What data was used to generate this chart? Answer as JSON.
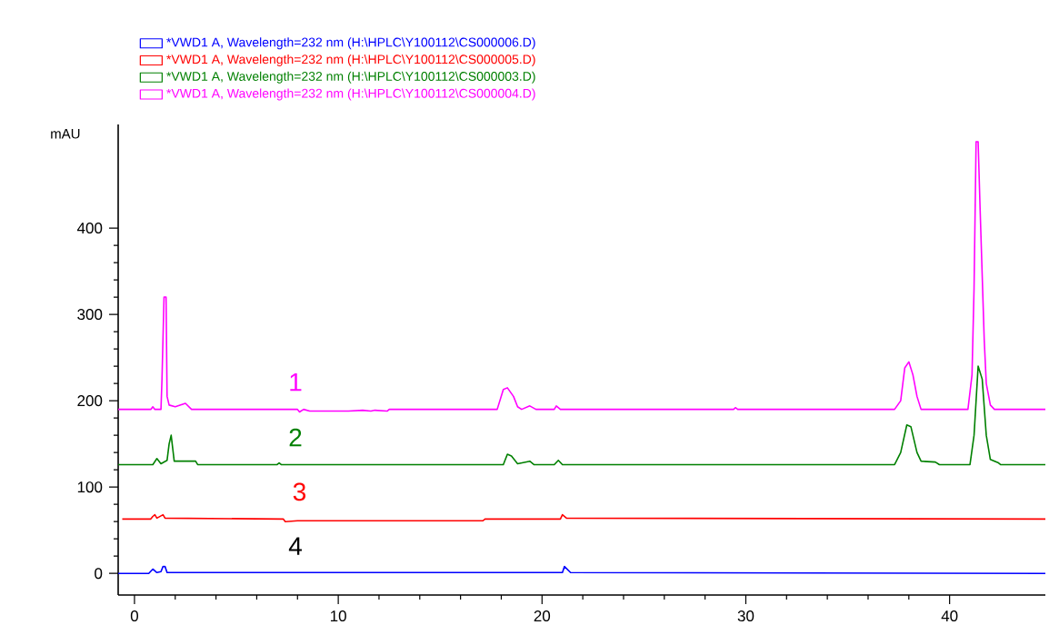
{
  "chart_data": {
    "type": "line",
    "ylabel": "mAU",
    "xlim": [
      -0.8,
      44.7
    ],
    "ylim": [
      -25,
      520
    ],
    "xticks": [
      0,
      10,
      20,
      30,
      40
    ],
    "yticks": [
      0,
      100,
      200,
      300,
      400
    ],
    "legend": "top",
    "series": [
      {
        "name": "*VWD1 A, Wavelength=232 nm (H:\\HPLC\\Y100112\\CS000006.D)",
        "color": "#0000ff",
        "x": [
          -0.8,
          0.7,
          0.9,
          1.1,
          1.3,
          1.4,
          1.5,
          1.6,
          21.0,
          21.1,
          21.4,
          44.7
        ],
        "values": [
          0,
          0,
          5,
          1,
          2,
          8,
          8,
          1,
          1,
          8,
          1,
          0
        ]
      },
      {
        "name": "*VWD1 A, Wavelength=232 nm (H:\\HPLC\\Y100112\\CS000005.D)",
        "color": "#ff0000",
        "x": [
          -0.6,
          0.8,
          0.9,
          1.0,
          1.1,
          1.4,
          1.5,
          7.3,
          7.4,
          8.0,
          17.1,
          17.2,
          20.9,
          21.0,
          21.2,
          44.7
        ],
        "values": [
          63,
          63,
          66,
          68,
          64,
          68,
          64,
          63,
          60,
          61,
          61,
          63,
          63,
          68,
          64,
          63
        ]
      },
      {
        "name": "*VWD1 A, Wavelength=232 nm (H:\\HPLC\\Y100112\\CS000003.D)",
        "color": "#008000",
        "x": [
          -0.8,
          0.9,
          1.1,
          1.3,
          1.6,
          1.7,
          1.8,
          1.9,
          1.95,
          3.0,
          3.1,
          7.0,
          7.1,
          7.2,
          18.1,
          18.3,
          18.5,
          18.8,
          19.4,
          19.6,
          20.6,
          20.8,
          21.0,
          37.3,
          37.6,
          37.9,
          38.1,
          38.4,
          38.6,
          39.3,
          39.5,
          41.0,
          41.2,
          41.4,
          41.6,
          41.8,
          42.0,
          42.4,
          42.5,
          44.7
        ],
        "values": [
          126,
          126,
          133,
          127,
          131,
          150,
          160,
          140,
          130,
          130,
          126,
          126,
          128,
          126,
          126,
          138,
          136,
          127,
          130,
          126,
          126,
          131,
          126,
          126,
          140,
          172,
          170,
          140,
          130,
          129,
          126,
          126,
          160,
          240,
          225,
          160,
          132,
          128,
          126,
          126
        ]
      },
      {
        "name": "*VWD1 A, Wavelength=232 nm (H:\\HPLC\\Y100112\\CS000004.D)",
        "color": "#ff00ff",
        "x": [
          -0.8,
          0.8,
          0.9,
          1.0,
          1.3,
          1.35,
          1.45,
          1.55,
          1.6,
          1.7,
          2.0,
          2.5,
          2.8,
          8.0,
          8.1,
          8.3,
          8.6,
          10.5,
          11.2,
          11.6,
          11.8,
          12.4,
          12.5,
          17.8,
          18.1,
          18.3,
          18.6,
          18.8,
          19.0,
          19.4,
          19.7,
          20.6,
          20.7,
          20.9,
          29.4,
          29.5,
          29.6,
          37.3,
          37.6,
          37.8,
          38.0,
          38.2,
          38.4,
          38.6,
          40.9,
          41.1,
          41.2,
          41.3,
          41.4,
          41.5,
          41.7,
          41.8,
          42.0,
          42.2,
          44.7
        ],
        "values": [
          190,
          190,
          193,
          190,
          190,
          225,
          320,
          320,
          205,
          195,
          193,
          197,
          190,
          190,
          187,
          190,
          188,
          188,
          189,
          188,
          189,
          188,
          190,
          190,
          213,
          215,
          205,
          193,
          190,
          194,
          190,
          190,
          194,
          190,
          190,
          192,
          190,
          190,
          200,
          238,
          245,
          230,
          205,
          190,
          190,
          230,
          330,
          500,
          500,
          420,
          270,
          220,
          195,
          190,
          190
        ]
      }
    ],
    "annotations": [
      "1",
      "2",
      "3",
      "4"
    ]
  }
}
